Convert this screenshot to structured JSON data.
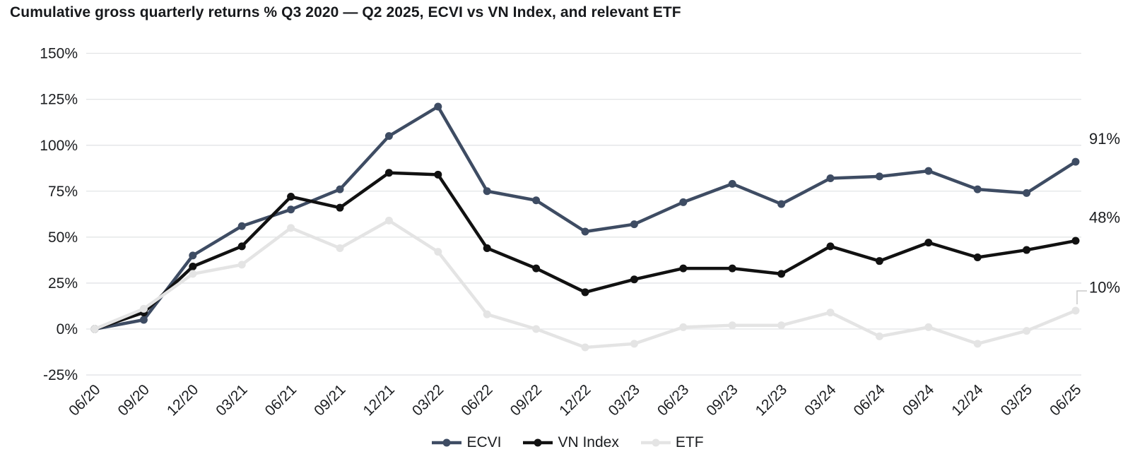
{
  "title": "Cumulative gross quarterly returns % Q3 2020 — Q2 2025, ECVI vs VN Index, and relevant ETF",
  "chart_data": {
    "type": "line",
    "title": "Cumulative gross quarterly returns % Q3 2020 — Q2 2025, ECVI vs VN Index, and relevant ETF",
    "categories": [
      "06/20",
      "09/20",
      "12/20",
      "03/21",
      "06/21",
      "09/21",
      "12/21",
      "03/22",
      "06/22",
      "09/22",
      "12/22",
      "03/23",
      "06/23",
      "09/23",
      "12/23",
      "03/24",
      "06/24",
      "09/24",
      "12/24",
      "03/25",
      "06/25"
    ],
    "series": [
      {
        "name": "ECVI",
        "color": "#3e4c63",
        "values": [
          0,
          5,
          40,
          56,
          65,
          76,
          105,
          121,
          75,
          70,
          53,
          57,
          69,
          79,
          68,
          82,
          83,
          86,
          76,
          74,
          91
        ]
      },
      {
        "name": "VN Index",
        "color": "#111111",
        "values": [
          0,
          9,
          34,
          45,
          72,
          66,
          85,
          84,
          44,
          33,
          20,
          27,
          33,
          33,
          30,
          45,
          37,
          47,
          39,
          43,
          48
        ]
      },
      {
        "name": "ETF",
        "color": "#e4e4e4",
        "values": [
          0,
          11,
          30,
          35,
          55,
          44,
          59,
          42,
          8,
          0,
          -10,
          -8,
          1,
          2,
          2,
          9,
          -4,
          1,
          -8,
          -1,
          10
        ]
      }
    ],
    "y_ticks": [
      {
        "label": "150%",
        "value": 150
      },
      {
        "label": "125%",
        "value": 125
      },
      {
        "label": "100%",
        "value": 100
      },
      {
        "label": "75%",
        "value": 75
      },
      {
        "label": "50%",
        "value": 50
      },
      {
        "label": "25%",
        "value": 25
      },
      {
        "label": "0%",
        "value": 0
      },
      {
        "label": "-25%",
        "value": -25
      }
    ],
    "end_labels": [
      {
        "text": "91%",
        "series": "ECVI",
        "callout": false
      },
      {
        "text": "48%",
        "series": "VN Index",
        "callout": false
      },
      {
        "text": "10%",
        "series": "ETF",
        "callout": true
      }
    ],
    "ylim": [
      -25,
      150
    ],
    "xlabel": "",
    "ylabel": "",
    "grid": "horizontal",
    "legend_position": "bottom",
    "x_tick_rotation": -45,
    "colors": {
      "gridline": "#e2e4e6",
      "axis_text": "#1b1d20",
      "title_text": "#17191c",
      "callout_line": "#c9c9c9"
    }
  }
}
